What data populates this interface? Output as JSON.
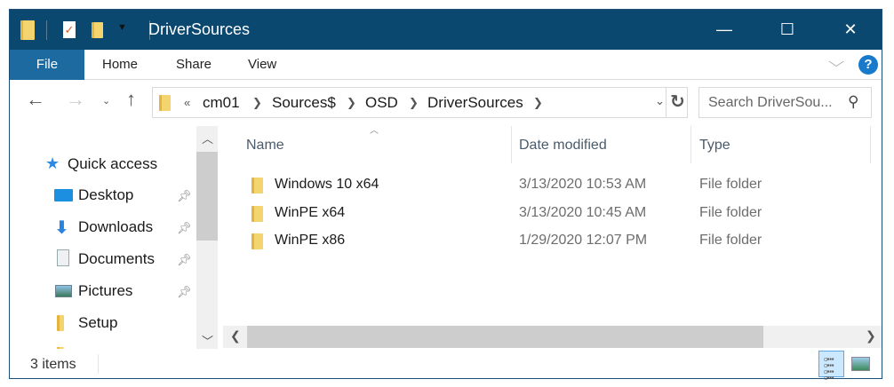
{
  "window": {
    "title": "DriverSources",
    "controls": {
      "minimize": "—",
      "maximize": "☐",
      "close": "✕"
    }
  },
  "ribbon": {
    "tabs": [
      {
        "label": "File"
      },
      {
        "label": "Home"
      },
      {
        "label": "Share"
      },
      {
        "label": "View"
      }
    ],
    "help": "?"
  },
  "address": {
    "overflow": "«",
    "crumbs": [
      "cm01",
      "Sources$",
      "OSD",
      "DriverSources"
    ]
  },
  "search": {
    "placeholder": "Search DriverSou..."
  },
  "nav": {
    "items": [
      {
        "label": "Quick access",
        "icon": "star-icon"
      },
      {
        "label": "Desktop",
        "icon": "desktop-icon",
        "pinned": true
      },
      {
        "label": "Downloads",
        "icon": "download-icon",
        "pinned": true
      },
      {
        "label": "Documents",
        "icon": "documents-icon",
        "pinned": true
      },
      {
        "label": "Pictures",
        "icon": "pictures-icon",
        "pinned": true
      },
      {
        "label": "Setup",
        "icon": "folder-icon"
      }
    ]
  },
  "list": {
    "columns": [
      "Name",
      "Date modified",
      "Type"
    ],
    "rows": [
      {
        "name": "Windows 10 x64",
        "date": "3/13/2020 10:53 AM",
        "type": "File folder"
      },
      {
        "name": "WinPE x64",
        "date": "3/13/2020 10:45 AM",
        "type": "File folder"
      },
      {
        "name": "WinPE x86",
        "date": "1/29/2020 12:07 PM",
        "type": "File folder"
      }
    ]
  },
  "status": {
    "count": "3 items"
  },
  "colors": {
    "titlebar": "#0b4870",
    "file_tab": "#1d6aa1",
    "accent": "#1979ca"
  }
}
